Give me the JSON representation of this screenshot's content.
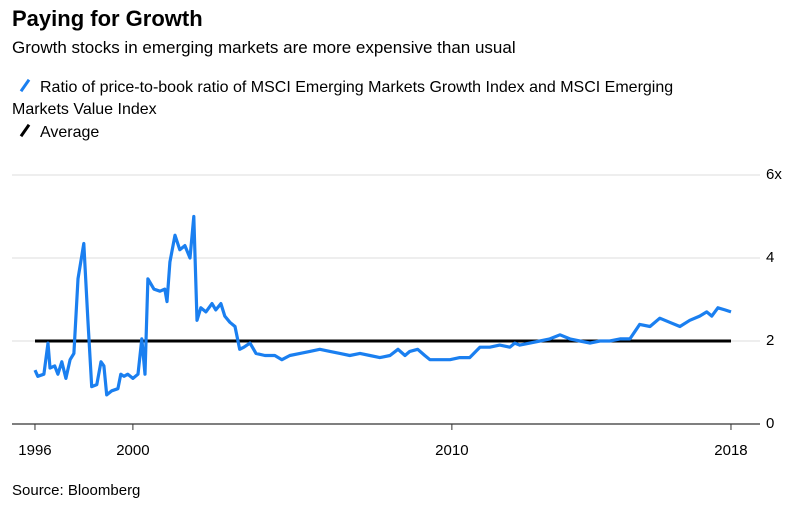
{
  "chart_data": {
    "type": "line",
    "title": "Paying for Growth",
    "subtitle": "Growth stocks in emerging markets are more expensive than usual",
    "source": "Source: Bloomberg",
    "series": [
      {
        "name": "Ratio of price-to-book ratio of MSCI Emerging Markets Growth Index and MSCI Emerging Markets Value Index",
        "color": "#1a7ff0",
        "x": [
          1996.93,
          1997.02,
          1997.21,
          1997.34,
          1997.4,
          1997.55,
          1997.65,
          1997.77,
          1997.9,
          1998.03,
          1998.15,
          1998.28,
          1998.46,
          1998.59,
          1998.71,
          1998.87,
          1999.0,
          1999.09,
          1999.18,
          1999.34,
          1999.53,
          1999.62,
          1999.72,
          1999.84,
          2000.0,
          2000.16,
          2000.28,
          2000.38,
          2000.47,
          2000.66,
          2000.85,
          2001.0,
          2001.07,
          2001.16,
          2001.32,
          2001.47,
          2001.63,
          2001.79,
          2001.91,
          2002.01,
          2002.13,
          2002.29,
          2002.48,
          2002.6,
          2002.76,
          2002.88,
          2003.04,
          2003.2,
          2003.35,
          2003.48,
          2003.67,
          2003.86,
          2004.14,
          2004.45,
          2004.67,
          2004.92,
          2005.24,
          2005.55,
          2005.86,
          2006.18,
          2006.49,
          2006.8,
          2007.12,
          2007.43,
          2007.74,
          2008.06,
          2008.31,
          2008.53,
          2008.68,
          2008.93,
          2009.15,
          2009.31,
          2009.62,
          2009.94,
          2010.25,
          2010.56,
          2010.88,
          2011.19,
          2011.5,
          2011.82,
          2011.97,
          2012.13,
          2012.45,
          2012.76,
          2013.07,
          2013.39,
          2013.7,
          2014.01,
          2014.33,
          2014.64,
          2014.95,
          2015.27,
          2015.58,
          2015.89,
          2016.21,
          2016.52,
          2016.83,
          2017.15,
          2017.46,
          2017.77,
          2017.99,
          2018.15,
          2018.34,
          2018.56,
          2018.75
        ],
        "values": [
          1.3,
          1.15,
          1.2,
          1.95,
          1.35,
          1.4,
          1.2,
          1.5,
          1.1,
          1.55,
          1.7,
          3.5,
          4.35,
          2.5,
          0.9,
          0.95,
          1.5,
          1.4,
          0.7,
          0.8,
          0.85,
          1.2,
          1.15,
          1.2,
          1.1,
          1.2,
          2.05,
          1.2,
          3.5,
          3.25,
          3.2,
          3.25,
          2.95,
          3.9,
          4.55,
          4.2,
          4.3,
          4.0,
          5.0,
          2.5,
          2.8,
          2.7,
          2.9,
          2.75,
          2.9,
          2.6,
          2.45,
          2.35,
          1.8,
          1.85,
          1.95,
          1.7,
          1.65,
          1.65,
          1.55,
          1.65,
          1.7,
          1.75,
          1.8,
          1.75,
          1.7,
          1.65,
          1.7,
          1.65,
          1.6,
          1.65,
          1.8,
          1.65,
          1.75,
          1.8,
          1.65,
          1.55,
          1.55,
          1.55,
          1.6,
          1.6,
          1.85,
          1.85,
          1.9,
          1.85,
          1.95,
          1.9,
          1.95,
          2.0,
          2.05,
          2.15,
          2.05,
          2.0,
          1.95,
          2.0,
          2.0,
          2.05,
          2.05,
          2.4,
          2.35,
          2.55,
          2.45,
          2.35,
          2.5,
          2.6,
          2.7,
          2.6,
          2.8,
          2.75,
          2.7
        ]
      },
      {
        "name": "Average",
        "color": "#000000",
        "x": [
          1996.93,
          2018.75
        ],
        "values": [
          2,
          2
        ]
      }
    ],
    "xlim": [
      1996.21,
      2019.66
    ],
    "xticks": [
      {
        "value": 1996.93,
        "label": "1996"
      },
      2000,
      2010,
      {
        "value": 2018.75,
        "label": "2018"
      }
    ],
    "ylim": [
      0,
      6
    ],
    "yticks": [
      0,
      2,
      4,
      {
        "value": 6,
        "label": "6x"
      }
    ],
    "grid": true
  }
}
